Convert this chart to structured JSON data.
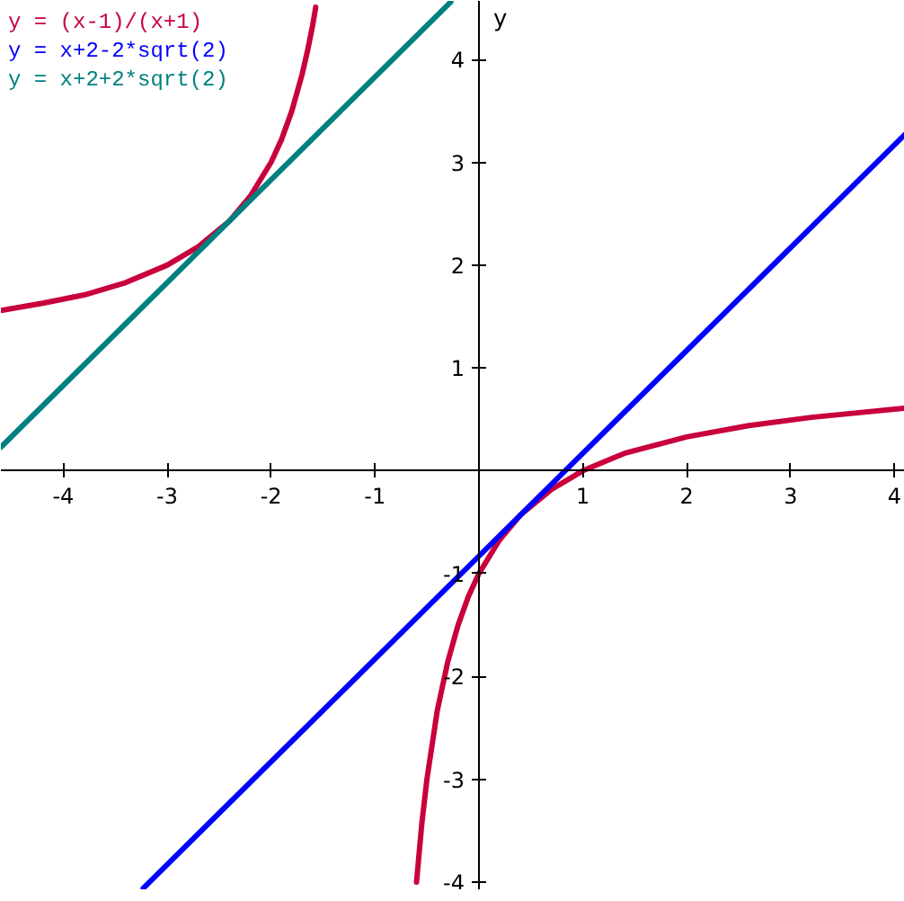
{
  "chart_data": {
    "type": "line",
    "ylabel": "y",
    "xlim": [
      -4.6,
      4.1
    ],
    "ylim": [
      -4.07,
      4.57
    ],
    "xticks": [
      -4,
      -3,
      -2,
      -1,
      1,
      2,
      3,
      4
    ],
    "yticks": [
      -4,
      -3,
      -2,
      -1,
      1,
      2,
      3,
      4
    ],
    "legend": "top left",
    "series": [
      {
        "name": "y = (x-1)/(x+1)",
        "color": "#c8003c",
        "x": [
          -4.6,
          -4.2,
          -3.8,
          -3.4,
          -3.0,
          -2.7,
          -2.4,
          -2.2,
          -2.0,
          -1.9,
          -1.8,
          -1.7,
          -1.65,
          -1.6,
          -1.57,
          -1.0,
          -0.6,
          -0.55,
          -0.5,
          -0.4,
          -0.3,
          -0.2,
          -0.1,
          0.0,
          0.2,
          0.4,
          0.7,
          1.0,
          1.4,
          2.0,
          2.6,
          3.2,
          4.1
        ],
        "values": [
          1.56,
          1.63,
          1.71,
          1.83,
          2.0,
          2.18,
          2.43,
          2.67,
          3.0,
          3.22,
          3.5,
          3.86,
          4.08,
          4.33,
          4.51,
          null,
          -4.0,
          -3.44,
          -3.0,
          -2.33,
          -1.86,
          -1.5,
          -1.22,
          -1.0,
          -0.67,
          -0.43,
          -0.18,
          0.0,
          0.17,
          0.33,
          0.44,
          0.52,
          0.61
        ]
      },
      {
        "name": "y = x+2-2*sqrt(2)",
        "color": "#0000ff",
        "x": [
          -3.23,
          4.1
        ],
        "values": [
          -4.06,
          3.27
        ]
      },
      {
        "name": "y = x+2+2*sqrt(2)",
        "color": "#008080",
        "x": [
          -4.6,
          -0.27
        ],
        "values": [
          0.23,
          4.56
        ]
      }
    ]
  }
}
